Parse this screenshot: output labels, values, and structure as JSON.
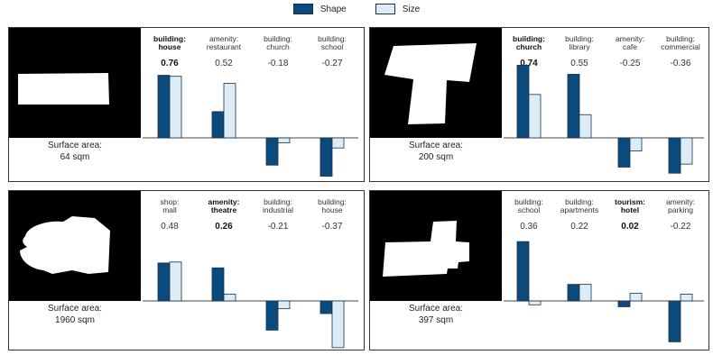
{
  "legend": {
    "shape_label": "Shape",
    "size_label": "Size",
    "shape_color": "#0b4a7c",
    "size_color": "#dcedf8"
  },
  "chart_data": [
    {
      "type": "bar",
      "surface_label": "Surface area:",
      "surface_value": "64 sqm",
      "thumbnail_shape": "rectangle",
      "categories": [
        {
          "line1": "building:",
          "line2": "house",
          "score": "0.76",
          "bold": true
        },
        {
          "line1": "amenity:",
          "line2": "restaurant",
          "score": "0.52",
          "bold": false
        },
        {
          "line1": "building:",
          "line2": "church",
          "score": "-0.18",
          "bold": false
        },
        {
          "line1": "building:",
          "line2": "school",
          "score": "-0.27",
          "bold": false
        }
      ],
      "series": [
        {
          "name": "Shape",
          "values": [
            0.62,
            0.26,
            -0.27,
            -0.38
          ]
        },
        {
          "name": "Size",
          "values": [
            0.61,
            0.54,
            -0.05,
            -0.1
          ]
        }
      ]
    },
    {
      "type": "bar",
      "surface_label": "Surface area:",
      "surface_value": "200 sqm",
      "thumbnail_shape": "slanted-t",
      "categories": [
        {
          "line1": "building:",
          "line2": "church",
          "score": "0.74",
          "bold": true
        },
        {
          "line1": "building:",
          "line2": "library",
          "score": "0.55",
          "bold": false
        },
        {
          "line1": "amenity:",
          "line2": "cafe",
          "score": "-0.25",
          "bold": false
        },
        {
          "line1": "building:",
          "line2": "commercial",
          "score": "-0.36",
          "bold": false
        }
      ],
      "series": [
        {
          "name": "Shape",
          "values": [
            0.72,
            0.63,
            -0.29,
            -0.35
          ]
        },
        {
          "name": "Size",
          "values": [
            0.43,
            0.23,
            -0.13,
            -0.26
          ]
        }
      ]
    },
    {
      "type": "bar",
      "surface_label": "Surface area:",
      "surface_value": "1960 sqm",
      "thumbnail_shape": "irregular-blob",
      "categories": [
        {
          "line1": "shop:",
          "line2": "mall",
          "score": "0.48",
          "bold": false
        },
        {
          "line1": "amenity:",
          "line2": "theatre",
          "score": "0.26",
          "bold": true
        },
        {
          "line1": "building:",
          "line2": "industrial",
          "score": "-0.21",
          "bold": false
        },
        {
          "line1": "building:",
          "line2": "house",
          "score": "-0.37",
          "bold": false
        }
      ],
      "series": [
        {
          "name": "Shape",
          "values": [
            0.39,
            0.34,
            -0.3,
            -0.13
          ]
        },
        {
          "name": "Size",
          "values": [
            0.4,
            0.07,
            -0.08,
            -0.48
          ]
        }
      ]
    },
    {
      "type": "bar",
      "surface_label": "Surface area:",
      "surface_value": "397 sqm",
      "thumbnail_shape": "stepped-polygon",
      "categories": [
        {
          "line1": "building:",
          "line2": "school",
          "score": "0.36",
          "bold": false
        },
        {
          "line1": "building:",
          "line2": "apartments",
          "score": "0.22",
          "bold": false
        },
        {
          "line1": "tourism:",
          "line2": "hotel",
          "score": "0.02",
          "bold": true
        },
        {
          "line1": "amenity:",
          "line2": "parking",
          "score": "-0.22",
          "bold": false
        }
      ],
      "series": [
        {
          "name": "Shape",
          "values": [
            0.61,
            0.17,
            -0.06,
            -0.42
          ]
        },
        {
          "name": "Size",
          "values": [
            -0.04,
            0.17,
            0.08,
            0.07
          ]
        }
      ]
    }
  ]
}
